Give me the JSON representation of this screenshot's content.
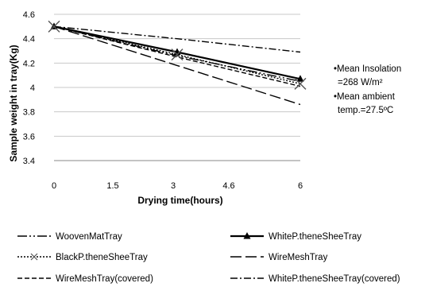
{
  "chart_data": {
    "type": "line",
    "title": "",
    "xlabel": "Drying time(hours)",
    "ylabel": "Sample weight in tray(Kg)",
    "x_ticks": [
      "0",
      "1.5",
      "3",
      "4.6",
      "6"
    ],
    "y_ticks": [
      "3.4",
      "3.6",
      "3.8",
      "4",
      "4.2",
      "4.4",
      "4.6"
    ],
    "ylim": [
      3.4,
      4.6
    ],
    "grid": "horizontal",
    "legend_position": "bottom",
    "annotations": [
      "•Mean Insolation",
      "=268 W/m²",
      "•Mean ambient",
      "temp.=27.5ºC"
    ],
    "series": [
      {
        "name": "WoovenMatTray",
        "style": "long-dash-dot-dot",
        "marker": "none",
        "color": "#000000",
        "x": [
          0,
          3,
          6
        ],
        "y": [
          4.5,
          4.26,
          4.05
        ]
      },
      {
        "name": "WhiteP.theneSheeTray",
        "style": "solid-bold",
        "marker": "triangle",
        "color": "#000000",
        "x": [
          0,
          3,
          6
        ],
        "y": [
          4.5,
          4.29,
          4.07
        ]
      },
      {
        "name": "BlackP.theneSheeTray",
        "style": "dotted",
        "marker": "x",
        "color": "#000000",
        "x": [
          0,
          3,
          6
        ],
        "y": [
          4.5,
          4.27,
          4.03
        ]
      },
      {
        "name": "WireMeshTray",
        "style": "long-dash",
        "marker": "none",
        "color": "#000000",
        "x": [
          0,
          3,
          6
        ],
        "y": [
          4.5,
          4.18,
          3.86
        ]
      },
      {
        "name": "WireMeshTray(covered)",
        "style": "dash",
        "marker": "none",
        "color": "#000000",
        "x": [
          0,
          3,
          6
        ],
        "y": [
          4.5,
          4.25,
          4.01
        ]
      },
      {
        "name": "WhiteP.theneSheeTray(covered)",
        "style": "dash-dot",
        "marker": "none",
        "color": "#000000",
        "x": [
          0,
          3,
          6
        ],
        "y": [
          4.5,
          4.4,
          4.29
        ]
      }
    ]
  }
}
